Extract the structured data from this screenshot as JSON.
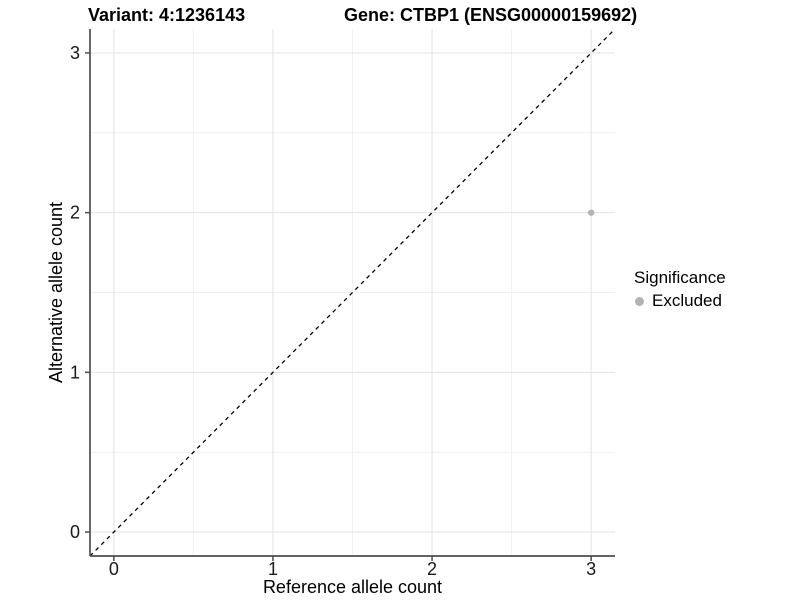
{
  "chart_data": {
    "type": "scatter",
    "title_left": "Variant: 4:1236143",
    "title_right": "Gene: CTBP1 (ENSG00000159692)",
    "xlabel": "Reference allele count",
    "ylabel": "Alternative allele count",
    "xlim": [
      -0.15,
      3.15
    ],
    "ylim": [
      -0.15,
      3.15
    ],
    "x_ticks": [
      0,
      1,
      2,
      3
    ],
    "y_ticks": [
      0,
      1,
      2,
      3
    ],
    "x_minor": [
      0.5,
      1.5,
      2.5
    ],
    "y_minor": [
      0.5,
      1.5,
      2.5
    ],
    "grid": "major-and-minor",
    "points": [
      {
        "x": 3,
        "y": 2,
        "series": "Excluded"
      }
    ],
    "reference_line": {
      "kind": "identity",
      "style": "dashed",
      "from": [
        -0.15,
        -0.15
      ],
      "to": [
        3.15,
        3.15
      ],
      "color": "#000000"
    },
    "legend": {
      "title": "Significance",
      "position": "right",
      "entries": [
        {
          "label": "Excluded",
          "color": "#b3b3b3",
          "marker": "circle"
        }
      ]
    },
    "style": {
      "point_color": "#b3b3b3",
      "point_radius": 3.2,
      "grid_major_color": "#e3e3e3",
      "grid_minor_color": "#f1f1f1",
      "axis_line_color": "#4d4d4d",
      "tick_label_color": "#1a1a1a",
      "text_color": "#000000",
      "background": "#ffffff"
    }
  }
}
